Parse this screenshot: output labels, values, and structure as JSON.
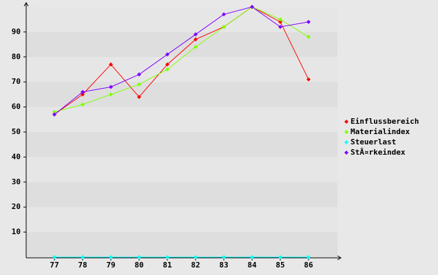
{
  "chart_data": {
    "type": "line",
    "categories": [
      "77",
      "78",
      "79",
      "80",
      "81",
      "82",
      "83",
      "84",
      "85",
      "86"
    ],
    "series": [
      {
        "name": "Einflussbereich",
        "color": "#ff0000",
        "values": [
          57,
          65,
          77,
          64,
          77,
          87,
          92,
          100,
          94,
          71
        ]
      },
      {
        "name": "Materialindex",
        "color": "#80ff00",
        "values": [
          58,
          61,
          65,
          69,
          75,
          84,
          92,
          100,
          95,
          88
        ]
      },
      {
        "name": "Steuerlast",
        "color": "#00ffff",
        "values": [
          0,
          0,
          0,
          0,
          0,
          0,
          0,
          0,
          0,
          0
        ]
      },
      {
        "name": "StÃ¤rkeindex",
        "color": "#8000ff",
        "values": [
          57,
          66,
          68,
          73,
          81,
          89,
          97,
          100,
          92,
          94
        ]
      }
    ],
    "ylim": [
      0,
      100
    ],
    "yticks": [
      10,
      20,
      30,
      40,
      50,
      60,
      70,
      80,
      90
    ],
    "grid": true,
    "legend": "right"
  }
}
